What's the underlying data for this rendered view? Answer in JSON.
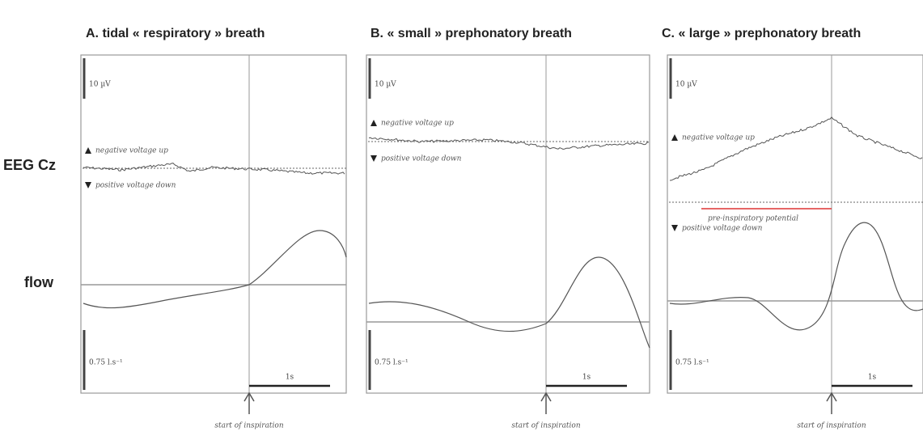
{
  "row_labels": {
    "eeg": "EEG Cz",
    "flow": "flow"
  },
  "panels": [
    {
      "title": "A. tidal « respiratory » breath",
      "eeg_scale": "10 µV",
      "negative_label": "negative voltage up",
      "positive_label": "positive voltage down",
      "flow_scale": "0.75 l.s⁻¹",
      "time_scale": "1s",
      "arrow_label": "start of inspiration"
    },
    {
      "title": "B. « small » prephonatory breath",
      "eeg_scale": "10 µV",
      "negative_label": "negative voltage up",
      "positive_label": "positive voltage down",
      "flow_scale": "0.75 l.s⁻¹",
      "time_scale": "1s",
      "arrow_label": "start of inspiration"
    },
    {
      "title": "C. « large » prephonatory breath",
      "eeg_scale": "10 µV",
      "negative_label": "negative voltage up",
      "positive_label": "positive voltage down",
      "flow_scale": "0.75 l.s⁻¹",
      "time_scale": "1s",
      "arrow_label": "start of inspiration",
      "annotation": "pre-inspiratory potential"
    }
  ]
}
